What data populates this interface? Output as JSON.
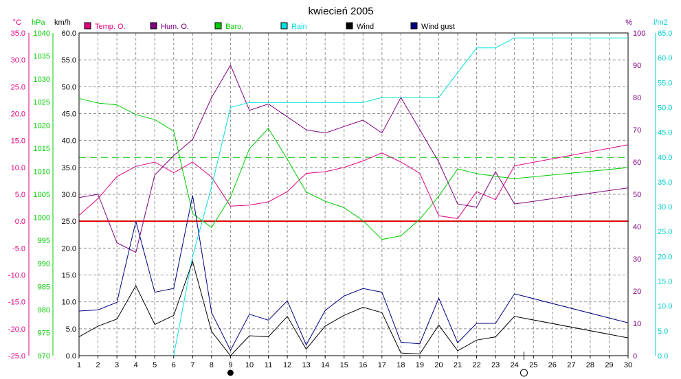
{
  "chart_data": {
    "type": "line",
    "title": "kwiecień 2005",
    "axes": {
      "x": {
        "min": 1,
        "max": 30,
        "ticks": [
          1,
          2,
          3,
          4,
          5,
          6,
          7,
          8,
          9,
          10,
          11,
          12,
          13,
          14,
          15,
          16,
          17,
          18,
          19,
          20,
          21,
          22,
          23,
          24,
          25,
          26,
          27,
          28,
          29,
          30
        ]
      },
      "temp": {
        "unit": "°C",
        "min": -25,
        "max": 35,
        "step": 5,
        "color": "#e0007f"
      },
      "baro": {
        "unit": "hPa",
        "min": 970,
        "max": 1040,
        "step": 5,
        "color": "#00cc00"
      },
      "wind": {
        "unit": "km/h",
        "min": 0,
        "max": 60,
        "step": 5,
        "color": "#000000"
      },
      "hum": {
        "unit": "%",
        "min": 0,
        "max": 100,
        "step": 10,
        "color": "#800080"
      },
      "rain": {
        "unit": "l/m2",
        "min": 0,
        "max": 65,
        "step": 5,
        "color": "#00cccc"
      }
    },
    "legend": {
      "temp": "Temp. O.",
      "hum": "Hum. O.",
      "baro": "Baro.",
      "rain": "Rain",
      "wind": "Wind",
      "gust": "Wind gust"
    },
    "reference_lines": {
      "temp_zero_c": 0,
      "baro_avg_hpa": 1013
    },
    "moon_markers": [
      {
        "day": 9,
        "phase": "new"
      },
      {
        "day": 24.5,
        "phase": "full"
      }
    ],
    "series": [
      {
        "key": "temp",
        "name": "Temp. O.",
        "axis": "temp",
        "color": "#e0007f",
        "x": [
          1,
          2,
          3,
          4,
          5,
          6,
          7,
          8,
          9,
          10,
          11,
          12,
          13,
          14,
          15,
          16,
          17,
          18,
          19,
          20,
          21,
          22,
          23,
          24,
          30
        ],
        "values": [
          1.1,
          4.2,
          8.3,
          10.2,
          11.0,
          9.0,
          11.0,
          8.2,
          2.8,
          3.0,
          3.6,
          5.5,
          8.9,
          9.2,
          10.0,
          11.2,
          12.7,
          11.0,
          8.9,
          1.0,
          0.5,
          5.5,
          4.0,
          10.3,
          14.2
        ]
      },
      {
        "key": "hum",
        "name": "Hum. O.",
        "axis": "hum",
        "color": "#800080",
        "x": [
          1,
          2,
          3,
          4,
          5,
          6,
          7,
          8,
          9,
          10,
          11,
          12,
          13,
          14,
          15,
          16,
          17,
          18,
          19,
          20,
          21,
          22,
          23,
          24,
          30
        ],
        "values": [
          49,
          50,
          35,
          32,
          56,
          62,
          67,
          80,
          90,
          76,
          78,
          74,
          70,
          69,
          71,
          73,
          69,
          80,
          70,
          60,
          47,
          46,
          57,
          47,
          52
        ]
      },
      {
        "key": "baro",
        "name": "Baro.",
        "axis": "baro",
        "color": "#00cc00",
        "x": [
          1,
          2,
          3,
          4,
          5,
          6,
          7,
          8,
          9,
          10,
          11,
          12,
          13,
          14,
          15,
          16,
          17,
          18,
          19,
          20,
          21,
          22,
          23,
          24,
          30
        ],
        "values": [
          1025.8,
          1024.8,
          1024.4,
          1022.3,
          1021.2,
          1018.7,
          1000.8,
          997.8,
          1004.4,
          1014.9,
          1019.3,
          1012.6,
          1005.5,
          1003.5,
          1002.1,
          999.3,
          995.2,
          996.0,
          999.6,
          1004.6,
          1010.5,
          1009.5,
          1008.9,
          1008.4,
          1010.8
        ]
      },
      {
        "key": "rain",
        "name": "Rain",
        "axis": "rain",
        "color": "#00e0e0",
        "x": [
          6,
          7,
          8,
          9,
          10,
          11,
          12,
          13,
          14,
          15,
          16,
          17,
          18,
          19,
          20,
          21,
          22,
          23,
          24,
          25,
          26,
          27,
          28,
          29,
          30
        ],
        "values": [
          0,
          20,
          34,
          50,
          51,
          51,
          51,
          51,
          51,
          51,
          51,
          52,
          52,
          52,
          52,
          57,
          62,
          62,
          64,
          64,
          64,
          64,
          64,
          64,
          64
        ]
      },
      {
        "key": "wind",
        "name": "Wind",
        "axis": "wind",
        "color": "#000000",
        "x": [
          1,
          2,
          3,
          4,
          5,
          6,
          7,
          8,
          9,
          10,
          11,
          12,
          13,
          14,
          15,
          16,
          17,
          18,
          19,
          20,
          21,
          22,
          23,
          24,
          30
        ],
        "values": [
          3.5,
          5.5,
          6.8,
          13.0,
          5.8,
          7.5,
          17.5,
          4.5,
          0.0,
          3.7,
          3.5,
          7.3,
          1.2,
          5.5,
          7.5,
          9.0,
          8.0,
          0.5,
          0.3,
          5.7,
          0.9,
          2.9,
          3.5,
          7.3,
          3.3
        ]
      },
      {
        "key": "gust",
        "name": "Wind gust",
        "axis": "wind",
        "color": "#000080",
        "x": [
          1,
          2,
          3,
          4,
          5,
          6,
          7,
          8,
          9,
          10,
          11,
          12,
          13,
          14,
          15,
          16,
          17,
          18,
          19,
          20,
          21,
          22,
          23,
          24,
          30
        ],
        "values": [
          8.3,
          8.5,
          9.9,
          25.0,
          11.8,
          12.5,
          29.8,
          8.0,
          1.0,
          7.7,
          6.6,
          10.2,
          2.0,
          8.4,
          11.1,
          12.5,
          11.8,
          2.5,
          2.2,
          10.7,
          2.4,
          6.0,
          6.0,
          11.5,
          6.1
        ]
      }
    ]
  }
}
